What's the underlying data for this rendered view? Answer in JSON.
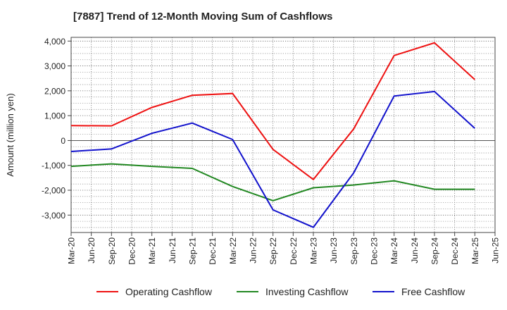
{
  "chart_data": {
    "type": "line",
    "title": "[7887]  Trend of 12-Month Moving Sum of Cashflows",
    "xlabel": "",
    "ylabel": "Amount (million yen)",
    "x": [
      "Mar-20",
      "Jun-20",
      "Sep-20",
      "Dec-20",
      "Mar-21",
      "Jun-21",
      "Sep-21",
      "Dec-21",
      "Mar-22",
      "Jun-22",
      "Sep-22",
      "Dec-22",
      "Mar-23",
      "Jun-23",
      "Sep-23",
      "Dec-23",
      "Mar-24",
      "Jun-24",
      "Sep-24",
      "Dec-24",
      "Mar-25",
      "Jun-25"
    ],
    "ylim": [
      -3700,
      4150
    ],
    "yticks": [
      4000,
      3000,
      2000,
      1000,
      0,
      -1000,
      -2000,
      -3000
    ],
    "ytick_labels": [
      "4,000",
      "3,000",
      "2,000",
      "1,000",
      "0",
      "-1,000",
      "-2,000",
      "-3,000"
    ],
    "grid": true,
    "legend_position": "bottom",
    "series": [
      {
        "name": "Operating Cashflow",
        "color": "#ee1111",
        "points": [
          {
            "x": "Mar-20",
            "y": 600
          },
          {
            "x": "Sep-20",
            "y": 590
          },
          {
            "x": "Mar-21",
            "y": 1330
          },
          {
            "x": "Sep-21",
            "y": 1820
          },
          {
            "x": "Mar-22",
            "y": 1890
          },
          {
            "x": "Sep-22",
            "y": -360
          },
          {
            "x": "Mar-23",
            "y": -1570
          },
          {
            "x": "Sep-23",
            "y": 470
          },
          {
            "x": "Mar-24",
            "y": 3420
          },
          {
            "x": "Sep-24",
            "y": 3930
          },
          {
            "x": "Mar-25",
            "y": 2450
          }
        ]
      },
      {
        "name": "Investing Cashflow",
        "color": "#228822",
        "points": [
          {
            "x": "Mar-20",
            "y": -1040
          },
          {
            "x": "Sep-20",
            "y": -940
          },
          {
            "x": "Mar-21",
            "y": -1040
          },
          {
            "x": "Sep-21",
            "y": -1120
          },
          {
            "x": "Mar-22",
            "y": -1850
          },
          {
            "x": "Sep-22",
            "y": -2420
          },
          {
            "x": "Mar-23",
            "y": -1900
          },
          {
            "x": "Sep-23",
            "y": -1790
          },
          {
            "x": "Mar-24",
            "y": -1620
          },
          {
            "x": "Sep-24",
            "y": -1960
          },
          {
            "x": "Mar-25",
            "y": -1960
          }
        ]
      },
      {
        "name": "Free Cashflow",
        "color": "#1111cc",
        "points": [
          {
            "x": "Mar-20",
            "y": -440
          },
          {
            "x": "Sep-20",
            "y": -340
          },
          {
            "x": "Mar-21",
            "y": 290
          },
          {
            "x": "Sep-21",
            "y": 700
          },
          {
            "x": "Mar-22",
            "y": 40
          },
          {
            "x": "Sep-22",
            "y": -2790
          },
          {
            "x": "Mar-23",
            "y": -3490
          },
          {
            "x": "Sep-23",
            "y": -1300
          },
          {
            "x": "Mar-24",
            "y": 1790
          },
          {
            "x": "Sep-24",
            "y": 1970
          },
          {
            "x": "Mar-25",
            "y": 490
          }
        ]
      }
    ]
  }
}
